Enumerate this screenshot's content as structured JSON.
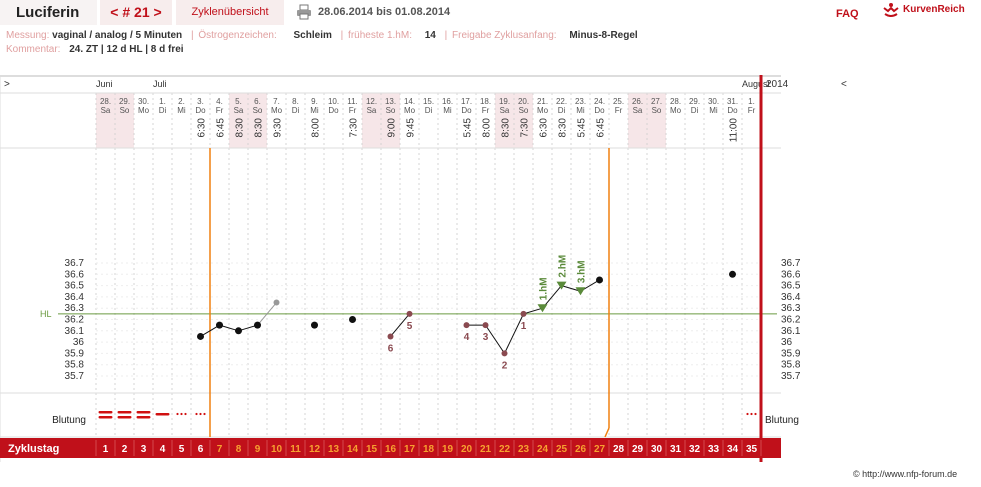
{
  "header": {
    "app_title": "Luciferin",
    "cycle_nav": "< # 21 >",
    "overview_tab": "Zyklenübersicht",
    "date_range": "28.06.2014 bis 01.08.2014",
    "faq": "FAQ",
    "logo_text": "KurvenReich"
  },
  "info": {
    "measurement_label": "Messung:",
    "measurement_value": "vaginal / analog / 5 Minuten",
    "estrogen_label": "Östrogenzeichen:",
    "estrogen_value": "Schleim",
    "earliest_label": "früheste 1.hM:",
    "earliest_value": "14",
    "release_label": "Freigabe Zyklusanfang:",
    "release_value": "Minus-8-Regel",
    "comment_label": "Kommentar:",
    "comment_value": "24. ZT | 12 d HL | 8 d frei"
  },
  "footer": {
    "copyright": "© http://www.nfp-forum.de"
  },
  "chart_data": {
    "type": "line",
    "months": [
      {
        "label": "Juni",
        "day_index": 0
      },
      {
        "label": "Juli",
        "day_index": 3
      },
      {
        "label": "August",
        "day_index": 34
      }
    ],
    "year": "2014",
    "arrow_left": ">",
    "arrow_right": "<",
    "dates": [
      "28.",
      "29.",
      "30.",
      "1.",
      "2.",
      "3.",
      "4.",
      "5.",
      "6.",
      "7.",
      "8.",
      "9.",
      "10.",
      "11.",
      "12.",
      "13.",
      "14.",
      "15.",
      "16.",
      "17.",
      "18.",
      "19.",
      "20.",
      "21.",
      "22.",
      "23.",
      "24.",
      "25.",
      "26.",
      "27.",
      "28.",
      "29.",
      "30.",
      "31.",
      "1."
    ],
    "weekdays": [
      "Sa",
      "So",
      "Mo",
      "Di",
      "Mi",
      "Do",
      "Fr",
      "Sa",
      "So",
      "Mo",
      "Di",
      "Mi",
      "Do",
      "Fr",
      "Sa",
      "So",
      "Mo",
      "Di",
      "Mi",
      "Do",
      "Fr",
      "Sa",
      "So",
      "Mo",
      "Di",
      "Mi",
      "Do",
      "Fr",
      "Sa",
      "So",
      "Mo",
      "Di",
      "Mi",
      "Do",
      "Fr"
    ],
    "times": [
      "",
      "",
      "",
      "",
      "",
      "6:30",
      "6:45",
      "8:30",
      "8:30",
      "9:30",
      "",
      "8:00",
      "",
      "7:30",
      "",
      "9:00",
      "9:45",
      "",
      "",
      "5:45",
      "8:00",
      "8:30",
      "7:30",
      "6:30",
      "8:30",
      "5:45",
      "6:45",
      "",
      "",
      "",
      "",
      "",
      "",
      "11:00",
      ""
    ],
    "temperatures": [
      null,
      null,
      null,
      null,
      null,
      36.05,
      36.15,
      36.1,
      36.15,
      36.35,
      null,
      36.15,
      null,
      36.2,
      null,
      36.05,
      36.25,
      null,
      null,
      36.15,
      36.15,
      35.9,
      36.25,
      36.3,
      36.5,
      36.45,
      36.55,
      null,
      null,
      null,
      null,
      null,
      null,
      36.6,
      null
    ],
    "excluded_indices": [
      9
    ],
    "connect_pairs": [
      [
        5,
        6
      ],
      [
        6,
        7
      ],
      [
        7,
        8
      ],
      [
        8,
        9
      ],
      [
        15,
        16
      ],
      [
        19,
        20
      ],
      [
        20,
        21
      ],
      [
        21,
        22
      ],
      [
        22,
        23
      ],
      [
        23,
        24
      ],
      [
        24,
        25
      ],
      [
        25,
        26
      ]
    ],
    "lower_markers": [
      {
        "day": 15,
        "label": "6"
      },
      {
        "day": 16,
        "label": "5"
      },
      {
        "day": 19,
        "label": "4"
      },
      {
        "day": 20,
        "label": "3"
      },
      {
        "day": 21,
        "label": "2"
      },
      {
        "day": 22,
        "label": "1"
      }
    ],
    "higher_markers": [
      {
        "day": 23,
        "label": "1.hM"
      },
      {
        "day": 24,
        "label": "2.hM"
      },
      {
        "day": 25,
        "label": "3.hM"
      }
    ],
    "coverline": 36.25,
    "coverline_label": "HL",
    "ylim": [
      35.6,
      36.85
    ],
    "yticks": [
      35.7,
      35.8,
      35.9,
      36.0,
      36.1,
      36.2,
      36.3,
      36.4,
      36.5,
      36.6,
      36.7
    ],
    "ytick_labels": [
      "35.7",
      "35.8",
      "35.9",
      "36",
      "36.1",
      "36.2",
      "36.3",
      "36.4",
      "36.5",
      "36.6",
      "36.7"
    ],
    "fertile_start_day": 6,
    "fertile_end_day": 26,
    "bleeding": [
      "strong",
      "strong",
      "strong",
      "medium",
      "spotting",
      "spotting",
      null,
      null,
      null,
      null,
      null,
      null,
      null,
      null,
      null,
      null,
      null,
      null,
      null,
      null,
      null,
      null,
      null,
      null,
      null,
      null,
      null,
      null,
      null,
      null,
      null,
      null,
      null,
      null,
      "spotting"
    ],
    "bleeding_label": "Blutung",
    "cycle_label": "Zyklustag",
    "cycle_days": [
      "1",
      "2",
      "3",
      "4",
      "5",
      "6",
      "7",
      "8",
      "9",
      "10",
      "11",
      "12",
      "13",
      "14",
      "15",
      "16",
      "17",
      "18",
      "19",
      "20",
      "21",
      "22",
      "23",
      "24",
      "25",
      "26",
      "27",
      "28",
      "29",
      "30",
      "31",
      "32",
      "33",
      "34",
      "35"
    ],
    "colors": {
      "accent": "#c0101a",
      "fertile": "#f08010",
      "coverline": "#6a9a40",
      "marker": "#8a4a50",
      "hM": "#5a8a3a",
      "weekend": "#f6e6e8"
    }
  }
}
